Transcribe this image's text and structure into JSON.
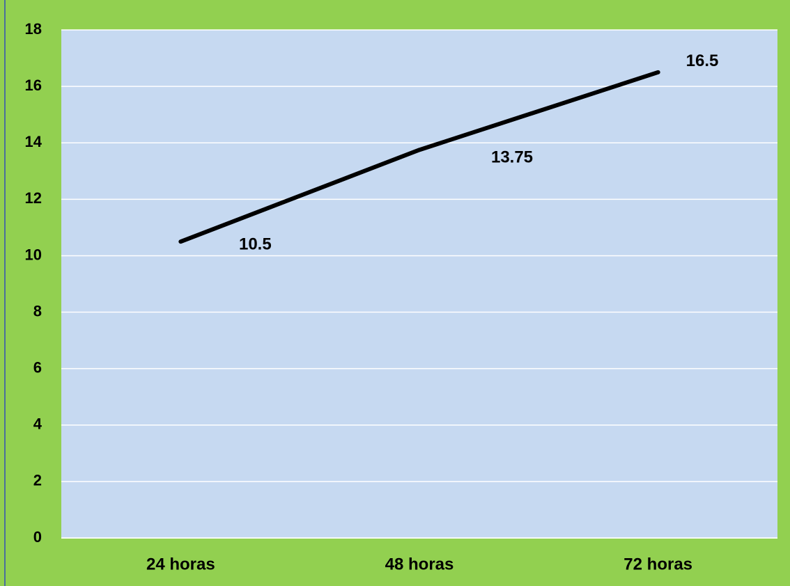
{
  "chart_data": {
    "type": "line",
    "categories": [
      "24 horas",
      "48 horas",
      "72 horas"
    ],
    "series": [
      {
        "color": "#000000",
        "values": [
          10.5,
          13.75,
          16.5
        ]
      }
    ],
    "ylim": [
      0,
      18
    ],
    "yticks": [
      0,
      2,
      4,
      6,
      8,
      10,
      12,
      14,
      16,
      18
    ],
    "grid": true,
    "background": "#92d050",
    "plot_background": "#c6d9f1"
  }
}
